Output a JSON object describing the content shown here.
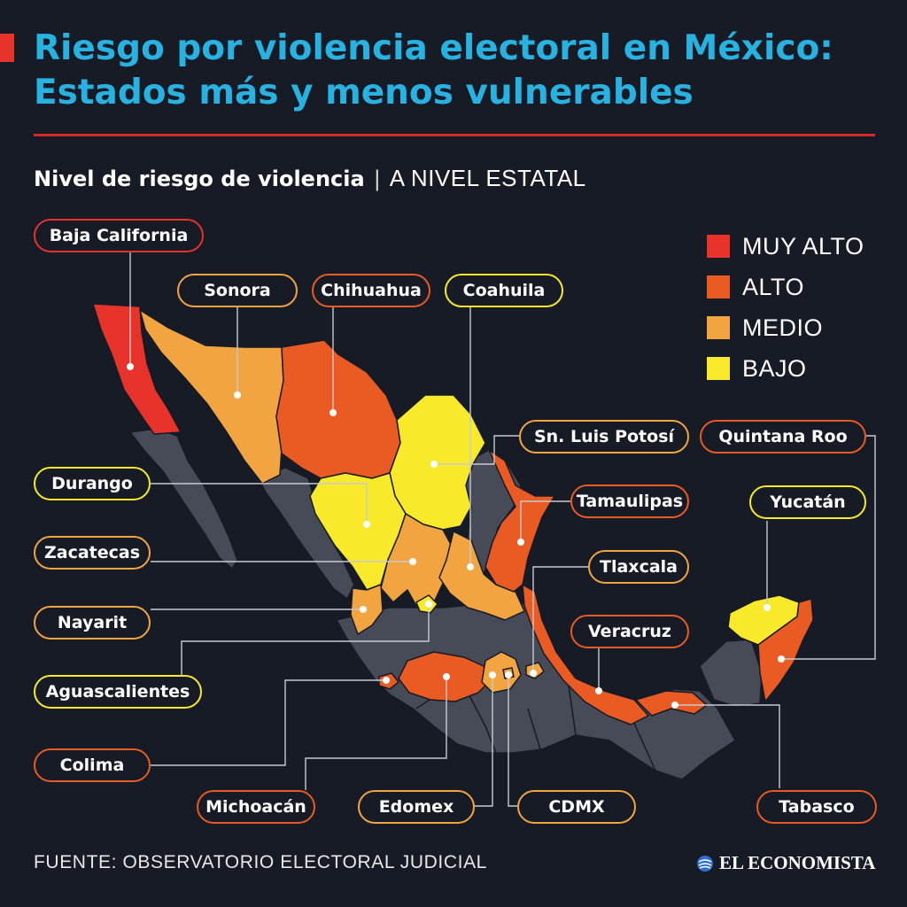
{
  "title": {
    "line1": "Riesgo por violencia electoral en México:",
    "line2": "Estados más y menos vulnerables"
  },
  "subtitle": {
    "bold": "Nivel de riesgo de violencia",
    "separator": "|",
    "light": "A NIVEL ESTATAL"
  },
  "colors": {
    "background": "#161b26",
    "title": "#27b2e2",
    "rule": "#d7282b",
    "no_data": "#474b57",
    "muy_alto": "#e8332b",
    "alto": "#ea5a23",
    "medio": "#f2a441",
    "bajo": "#f8e92b"
  },
  "legend": [
    {
      "label": "MUY ALTO",
      "level": "muy_alto",
      "color": "#e8332b"
    },
    {
      "label": "ALTO",
      "level": "alto",
      "color": "#ea5a23"
    },
    {
      "label": "MEDIO",
      "level": "medio",
      "color": "#f2a441"
    },
    {
      "label": "BAJO",
      "level": "bajo",
      "color": "#f8e92b"
    }
  ],
  "states": [
    {
      "name": "Baja California",
      "level": "muy_alto"
    },
    {
      "name": "Sonora",
      "level": "medio"
    },
    {
      "name": "Chihuahua",
      "level": "alto"
    },
    {
      "name": "Coahuila",
      "level": "bajo"
    },
    {
      "name": "Sn. Luis Potosí",
      "level": "medio"
    },
    {
      "name": "Quintana Roo",
      "level": "alto"
    },
    {
      "name": "Durango",
      "level": "bajo"
    },
    {
      "name": "Tamaulipas",
      "level": "alto"
    },
    {
      "name": "Yucatán",
      "level": "bajo"
    },
    {
      "name": "Zacatecas",
      "level": "medio"
    },
    {
      "name": "Tlaxcala",
      "level": "medio"
    },
    {
      "name": "Nayarit",
      "level": "medio"
    },
    {
      "name": "Veracruz",
      "level": "alto"
    },
    {
      "name": "Aguascalientes",
      "level": "bajo"
    },
    {
      "name": "Colima",
      "level": "alto"
    },
    {
      "name": "Michoacán",
      "level": "alto"
    },
    {
      "name": "Edomex",
      "level": "medio"
    },
    {
      "name": "CDMX",
      "level": "medio"
    },
    {
      "name": "Tabasco",
      "level": "alto"
    }
  ],
  "source": "FUENTE: OBSERVATORIO ELECTORAL JUDICIAL",
  "brand": "EL ECONOMISTA",
  "icons": {
    "brand_logo": "globe-swirl-icon"
  }
}
